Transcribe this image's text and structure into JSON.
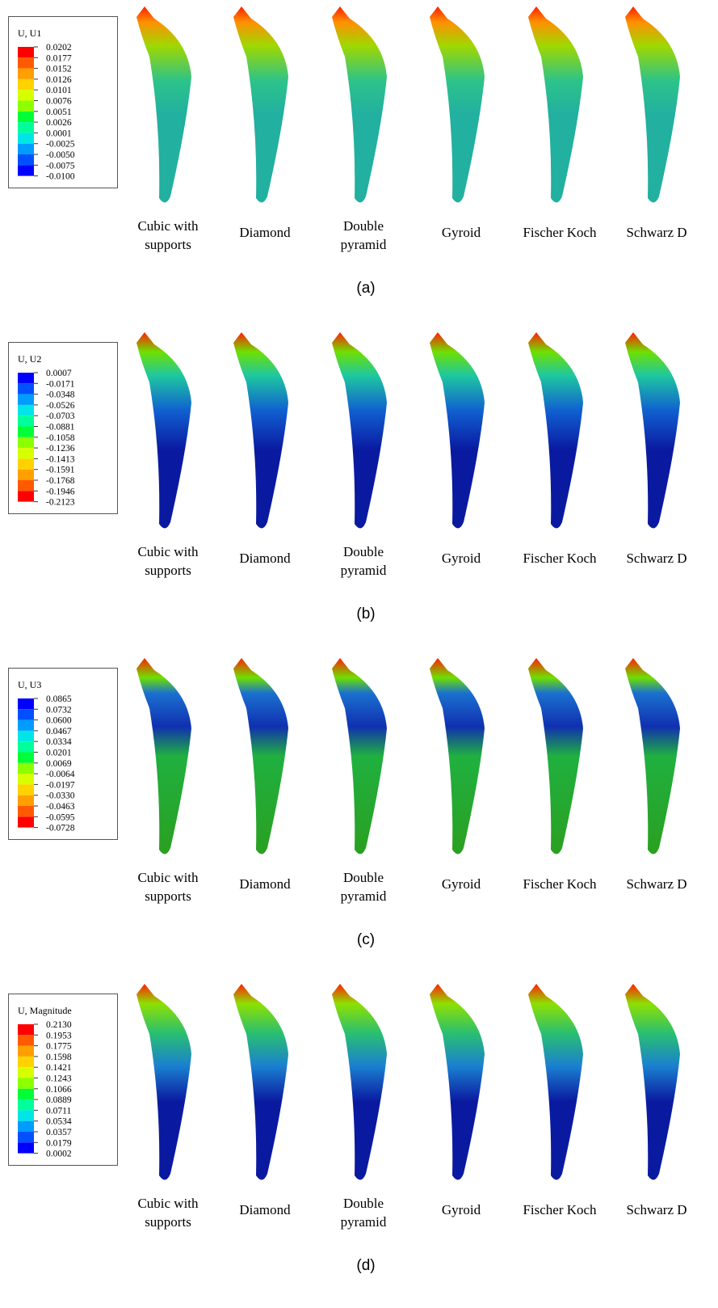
{
  "panels": [
    {
      "legend": {
        "title": "U, U1",
        "values": [
          "0.0202",
          "0.0177",
          "0.0152",
          "0.0126",
          "0.0101",
          "0.0076",
          "0.0051",
          "0.0026",
          "0.0001",
          "-0.0025",
          "-0.0050",
          "-0.0075",
          "-0.0100"
        ]
      },
      "labels": [
        [
          "Cubic with",
          "supports"
        ],
        [
          "Diamond"
        ],
        [
          "Double",
          "pyramid"
        ],
        [
          "Gyroid"
        ],
        [
          "Fischer Koch"
        ],
        [
          "Schwarz D"
        ]
      ],
      "caption": "(a)"
    },
    {
      "legend": {
        "title": "U, U2",
        "values": [
          "0.0007",
          "-0.0171",
          "-0.0348",
          "-0.0526",
          "-0.0703",
          "-0.0881",
          "-0.1058",
          "-0.1236",
          "-0.1413",
          "-0.1591",
          "-0.1768",
          "-0.1946",
          "-0.2123"
        ]
      },
      "labels": [
        [
          "Cubic with",
          "supports"
        ],
        [
          "Diamond"
        ],
        [
          "Double",
          "pyramid"
        ],
        [
          "Gyroid"
        ],
        [
          "Fischer Koch"
        ],
        [
          "Schwarz D"
        ]
      ],
      "caption": "(b)"
    },
    {
      "legend": {
        "title": "U, U3",
        "values": [
          "0.0865",
          "0.0732",
          "0.0600",
          "0.0467",
          "0.0334",
          "0.0201",
          "0.0069",
          "-0.0064",
          "-0.0197",
          "-0.0330",
          "-0.0463",
          "-0.0595",
          "-0.0728"
        ]
      },
      "labels": [
        [
          "Cubic with",
          "supports"
        ],
        [
          "Diamond"
        ],
        [
          "Double",
          "pyramid"
        ],
        [
          "Gyroid"
        ],
        [
          "Fischer Koch"
        ],
        [
          "Schwarz D"
        ]
      ],
      "caption": "(c)"
    },
    {
      "legend": {
        "title": "U, Magnitude",
        "values": [
          "0.2130",
          "0.1953",
          "0.1775",
          "0.1598",
          "0.1421",
          "0.1243",
          "0.1066",
          "0.0889",
          "0.0711",
          "0.0534",
          "0.0357",
          "0.0179",
          "0.0002"
        ]
      },
      "labels": [
        [
          "Cubic with",
          "supports"
        ],
        [
          "Diamond"
        ],
        [
          "Double",
          "pyramid"
        ],
        [
          "Gyroid"
        ],
        [
          "Fischer Koch"
        ],
        [
          "Schwarz D"
        ]
      ],
      "caption": "(d)"
    }
  ]
}
